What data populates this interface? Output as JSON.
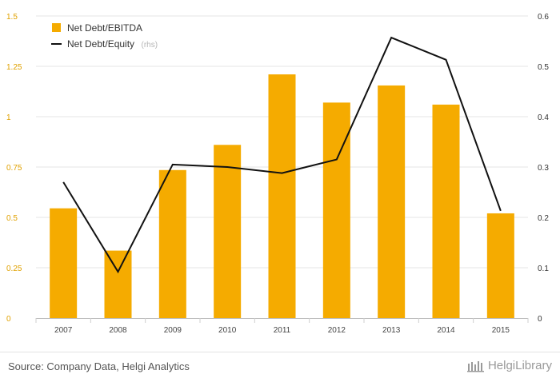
{
  "chart_data": {
    "type": "bar+line",
    "categories": [
      "2007",
      "2008",
      "2009",
      "2010",
      "2011",
      "2012",
      "2013",
      "2014",
      "2015"
    ],
    "series": [
      {
        "name": "Net Debt/EBITDA",
        "type": "bar",
        "axis": "left",
        "color": "#f5ab00",
        "values": [
          0.545,
          0.335,
          0.735,
          0.86,
          1.21,
          1.07,
          1.155,
          1.06,
          0.52
        ]
      },
      {
        "name": "Net Debt/Equity",
        "name_note": "(rhs)",
        "type": "line",
        "axis": "right",
        "color": "#111111",
        "values": [
          0.27,
          0.092,
          0.305,
          0.3,
          0.288,
          0.315,
          0.557,
          0.513,
          0.213
        ]
      }
    ],
    "y_left": {
      "min": 0,
      "max": 1.5,
      "ticks": [
        "0",
        "0.25",
        "0.5",
        "0.75",
        "1",
        "1.25",
        "1.5"
      ],
      "tick_values": [
        0,
        0.25,
        0.5,
        0.75,
        1,
        1.25,
        1.5
      ]
    },
    "y_right": {
      "min": 0,
      "max": 0.6,
      "ticks": [
        "0",
        "0.1",
        "0.2",
        "0.3",
        "0.4",
        "0.5",
        "0.6"
      ],
      "tick_values": [
        0,
        0.1,
        0.2,
        0.3,
        0.4,
        0.5,
        0.6
      ]
    },
    "grid": "horizontal",
    "legend_position": "top-left"
  },
  "footer": {
    "source": "Source: Company Data, Helgi Analytics",
    "brand": "HelgiLibrary"
  }
}
